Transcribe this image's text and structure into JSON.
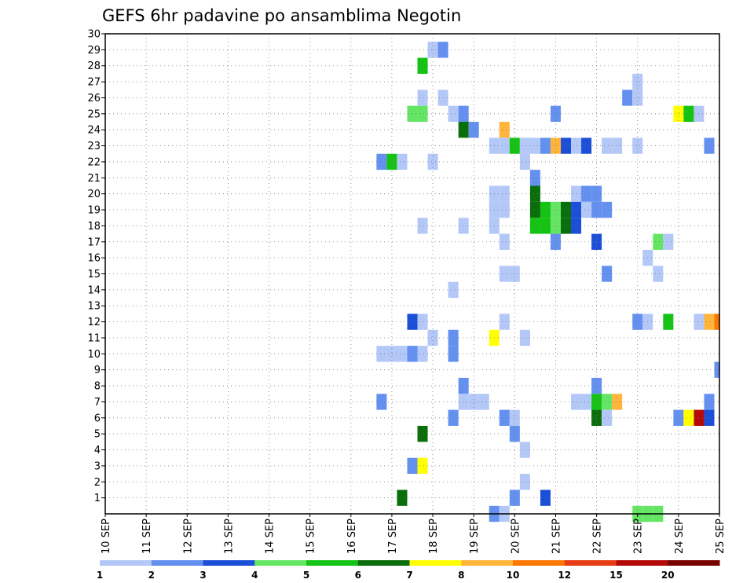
{
  "chart_data": {
    "type": "heatmap",
    "title": "GEFS 6hr padavine po ansamblima Negotin",
    "x_tick_labels": [
      "10 SEP",
      "11 SEP",
      "12 SEP",
      "13 SEP",
      "14 SEP",
      "15 SEP",
      "16 SEP",
      "17 SEP",
      "18 SEP",
      "19 SEP",
      "20 SEP",
      "21 SEP",
      "22 SEP",
      "23 SEP",
      "24 SEP",
      "25 SEP"
    ],
    "y_tick_labels": [
      "1",
      "2",
      "3",
      "4",
      "5",
      "6",
      "7",
      "8",
      "9",
      "10",
      "11",
      "12",
      "13",
      "14",
      "15",
      "16",
      "17",
      "18",
      "19",
      "20",
      "21",
      "22",
      "23",
      "24",
      "25",
      "26",
      "27",
      "28",
      "29",
      "30"
    ],
    "x_range": [
      "10 SEP 00h",
      "25 SEP 00h"
    ],
    "y_range": [
      0,
      30
    ],
    "time_step_hours": 6,
    "grid": true,
    "colorbar": {
      "colors": [
        "#b4c8f8",
        "#6490f0",
        "#1c4fd8",
        "#64e664",
        "#14c314",
        "#0a6e0a",
        "#ffff00",
        "#ffb43c",
        "#ff7800",
        "#e63c14",
        "#b40a0a",
        "#780000"
      ],
      "labels": [
        "1",
        "2",
        "3",
        "4",
        "5",
        "6",
        "7",
        "8",
        "10",
        "12",
        "15",
        "20"
      ]
    },
    "cells": [
      {
        "m": 29,
        "t": "18 SEP 00h",
        "c": 1
      },
      {
        "m": 29,
        "t": "18 SEP 06h",
        "c": 2
      },
      {
        "m": 28,
        "t": "17 SEP 18h",
        "c": 5
      },
      {
        "m": 27,
        "t": "23 SEP 00h",
        "c": 1
      },
      {
        "m": 26,
        "t": "17 SEP 18h",
        "c": 1
      },
      {
        "m": 26,
        "t": "18 SEP 06h",
        "c": 1
      },
      {
        "m": 26,
        "t": "22 SEP 18h",
        "c": 2
      },
      {
        "m": 26,
        "t": "23 SEP 00h",
        "c": 1
      },
      {
        "m": 25,
        "t": "17 SEP 12h",
        "c": 4
      },
      {
        "m": 25,
        "t": "17 SEP 18h",
        "c": 4
      },
      {
        "m": 25,
        "t": "18 SEP 12h",
        "c": 1
      },
      {
        "m": 25,
        "t": "18 SEP 18h",
        "c": 2
      },
      {
        "m": 25,
        "t": "21 SEP 00h",
        "c": 2
      },
      {
        "m": 25,
        "t": "24 SEP 00h",
        "c": 7
      },
      {
        "m": 25,
        "t": "24 SEP 06h",
        "c": 5
      },
      {
        "m": 25,
        "t": "24 SEP 12h",
        "c": 1
      },
      {
        "m": 24,
        "t": "18 SEP 18h",
        "c": 6
      },
      {
        "m": 24,
        "t": "19 SEP 00h",
        "c": 2
      },
      {
        "m": 24,
        "t": "19 SEP 18h",
        "c": 8
      },
      {
        "m": 23,
        "t": "19 SEP 12h",
        "c": 1
      },
      {
        "m": 23,
        "t": "19 SEP 18h",
        "c": 1
      },
      {
        "m": 23,
        "t": "20 SEP 00h",
        "c": 5
      },
      {
        "m": 23,
        "t": "20 SEP 06h",
        "c": 1
      },
      {
        "m": 23,
        "t": "20 SEP 12h",
        "c": 1
      },
      {
        "m": 23,
        "t": "20 SEP 18h",
        "c": 2
      },
      {
        "m": 23,
        "t": "21 SEP 00h",
        "c": 8
      },
      {
        "m": 23,
        "t": "21 SEP 06h",
        "c": 3
      },
      {
        "m": 23,
        "t": "21 SEP 12h",
        "c": 1
      },
      {
        "m": 23,
        "t": "21 SEP 18h",
        "c": 3
      },
      {
        "m": 23,
        "t": "22 SEP 06h",
        "c": 1
      },
      {
        "m": 23,
        "t": "22 SEP 12h",
        "c": 1
      },
      {
        "m": 23,
        "t": "23 SEP 00h",
        "c": 1
      },
      {
        "m": 23,
        "t": "24 SEP 18h",
        "c": 2
      },
      {
        "m": 22,
        "t": "16 SEP 18h",
        "c": 2
      },
      {
        "m": 22,
        "t": "17 SEP 00h",
        "c": 5
      },
      {
        "m": 22,
        "t": "17 SEP 06h",
        "c": 1
      },
      {
        "m": 22,
        "t": "18 SEP 00h",
        "c": 1
      },
      {
        "m": 22,
        "t": "20 SEP 06h",
        "c": 1
      },
      {
        "m": 21,
        "t": "20 SEP 12h",
        "c": 2
      },
      {
        "m": 20,
        "t": "19 SEP 12h",
        "c": 1
      },
      {
        "m": 20,
        "t": "19 SEP 18h",
        "c": 1
      },
      {
        "m": 20,
        "t": "20 SEP 12h",
        "c": 6
      },
      {
        "m": 20,
        "t": "21 SEP 12h",
        "c": 1
      },
      {
        "m": 20,
        "t": "21 SEP 18h",
        "c": 2
      },
      {
        "m": 20,
        "t": "22 SEP 00h",
        "c": 2
      },
      {
        "m": 19,
        "t": "19 SEP 12h",
        "c": 1
      },
      {
        "m": 19,
        "t": "19 SEP 18h",
        "c": 1
      },
      {
        "m": 19,
        "t": "20 SEP 12h",
        "c": 6
      },
      {
        "m": 19,
        "t": "20 SEP 18h",
        "c": 5
      },
      {
        "m": 19,
        "t": "21 SEP 00h",
        "c": 4
      },
      {
        "m": 19,
        "t": "21 SEP 06h",
        "c": 6
      },
      {
        "m": 19,
        "t": "21 SEP 12h",
        "c": 3
      },
      {
        "m": 19,
        "t": "21 SEP 18h",
        "c": 1
      },
      {
        "m": 19,
        "t": "22 SEP 00h",
        "c": 2
      },
      {
        "m": 19,
        "t": "22 SEP 06h",
        "c": 2
      },
      {
        "m": 18,
        "t": "17 SEP 18h",
        "c": 1
      },
      {
        "m": 18,
        "t": "18 SEP 18h",
        "c": 1
      },
      {
        "m": 18,
        "t": "19 SEP 12h",
        "c": 1
      },
      {
        "m": 18,
        "t": "20 SEP 12h",
        "c": 5
      },
      {
        "m": 18,
        "t": "20 SEP 18h",
        "c": 5
      },
      {
        "m": 18,
        "t": "21 SEP 00h",
        "c": 4
      },
      {
        "m": 18,
        "t": "21 SEP 06h",
        "c": 6
      },
      {
        "m": 18,
        "t": "21 SEP 12h",
        "c": 3
      },
      {
        "m": 17,
        "t": "19 SEP 18h",
        "c": 1
      },
      {
        "m": 17,
        "t": "21 SEP 00h",
        "c": 2
      },
      {
        "m": 17,
        "t": "22 SEP 00h",
        "c": 3
      },
      {
        "m": 17,
        "t": "23 SEP 12h",
        "c": 4
      },
      {
        "m": 17,
        "t": "23 SEP 18h",
        "c": 1
      },
      {
        "m": 16,
        "t": "23 SEP 06h",
        "c": 1
      },
      {
        "m": 15,
        "t": "19 SEP 18h",
        "c": 1
      },
      {
        "m": 15,
        "t": "20 SEP 00h",
        "c": 1
      },
      {
        "m": 15,
        "t": "22 SEP 06h",
        "c": 2
      },
      {
        "m": 15,
        "t": "23 SEP 12h",
        "c": 1
      },
      {
        "m": 14,
        "t": "18 SEP 12h",
        "c": 1
      },
      {
        "m": 12,
        "t": "17 SEP 12h",
        "c": 3
      },
      {
        "m": 12,
        "t": "17 SEP 18h",
        "c": 1
      },
      {
        "m": 12,
        "t": "19 SEP 18h",
        "c": 1
      },
      {
        "m": 12,
        "t": "23 SEP 00h",
        "c": 2
      },
      {
        "m": 12,
        "t": "23 SEP 06h",
        "c": 1
      },
      {
        "m": 12,
        "t": "23 SEP 18h",
        "c": 5
      },
      {
        "m": 12,
        "t": "24 SEP 12h",
        "c": 1
      },
      {
        "m": 12,
        "t": "24 SEP 18h",
        "c": 8
      },
      {
        "m": 12,
        "t": "25 SEP 00h",
        "c": 9
      },
      {
        "m": 11,
        "t": "18 SEP 00h",
        "c": 1
      },
      {
        "m": 11,
        "t": "18 SEP 12h",
        "c": 2
      },
      {
        "m": 11,
        "t": "19 SEP 12h",
        "c": 7
      },
      {
        "m": 11,
        "t": "20 SEP 06h",
        "c": 1
      },
      {
        "m": 10,
        "t": "16 SEP 18h",
        "c": 1
      },
      {
        "m": 10,
        "t": "17 SEP 00h",
        "c": 1
      },
      {
        "m": 10,
        "t": "17 SEP 06h",
        "c": 1
      },
      {
        "m": 10,
        "t": "17 SEP 12h",
        "c": 2
      },
      {
        "m": 10,
        "t": "17 SEP 18h",
        "c": 1
      },
      {
        "m": 10,
        "t": "18 SEP 12h",
        "c": 2
      },
      {
        "m": 9,
        "t": "25 SEP 00h",
        "c": 2
      },
      {
        "m": 8,
        "t": "18 SEP 18h",
        "c": 2
      },
      {
        "m": 8,
        "t": "22 SEP 00h",
        "c": 2
      },
      {
        "m": 7,
        "t": "16 SEP 18h",
        "c": 2
      },
      {
        "m": 7,
        "t": "18 SEP 18h",
        "c": 1
      },
      {
        "m": 7,
        "t": "19 SEP 00h",
        "c": 1
      },
      {
        "m": 7,
        "t": "19 SEP 06h",
        "c": 1
      },
      {
        "m": 7,
        "t": "21 SEP 12h",
        "c": 1
      },
      {
        "m": 7,
        "t": "21 SEP 18h",
        "c": 1
      },
      {
        "m": 7,
        "t": "22 SEP 00h",
        "c": 5
      },
      {
        "m": 7,
        "t": "22 SEP 06h",
        "c": 4
      },
      {
        "m": 7,
        "t": "22 SEP 12h",
        "c": 8
      },
      {
        "m": 7,
        "t": "24 SEP 18h",
        "c": 2
      },
      {
        "m": 6,
        "t": "18 SEP 12h",
        "c": 2
      },
      {
        "m": 6,
        "t": "19 SEP 18h",
        "c": 2
      },
      {
        "m": 6,
        "t": "20 SEP 00h",
        "c": 1
      },
      {
        "m": 6,
        "t": "22 SEP 00h",
        "c": 6
      },
      {
        "m": 6,
        "t": "22 SEP 06h",
        "c": 1
      },
      {
        "m": 6,
        "t": "24 SEP 00h",
        "c": 2
      },
      {
        "m": 6,
        "t": "24 SEP 06h",
        "c": 7
      },
      {
        "m": 6,
        "t": "24 SEP 12h",
        "c": 11
      },
      {
        "m": 6,
        "t": "24 SEP 18h",
        "c": 3
      },
      {
        "m": 5,
        "t": "17 SEP 18h",
        "c": 6
      },
      {
        "m": 5,
        "t": "20 SEP 00h",
        "c": 2
      },
      {
        "m": 4,
        "t": "20 SEP 06h",
        "c": 1
      },
      {
        "m": 3,
        "t": "17 SEP 12h",
        "c": 2
      },
      {
        "m": 3,
        "t": "17 SEP 18h",
        "c": 7
      },
      {
        "m": 2,
        "t": "20 SEP 06h",
        "c": 1
      },
      {
        "m": 1,
        "t": "17 SEP 06h",
        "c": 6
      },
      {
        "m": 1,
        "t": "20 SEP 00h",
        "c": 2
      },
      {
        "m": 1,
        "t": "20 SEP 18h",
        "c": 3
      },
      {
        "m": 0,
        "t": "19 SEP 12h",
        "c": 2
      },
      {
        "m": 0,
        "t": "19 SEP 18h",
        "c": 1
      },
      {
        "m": 0,
        "t": "23 SEP 00h",
        "c": 4
      },
      {
        "m": 0,
        "t": "23 SEP 06h",
        "c": 4
      },
      {
        "m": 0,
        "t": "23 SEP 12h",
        "c": 4
      }
    ]
  }
}
